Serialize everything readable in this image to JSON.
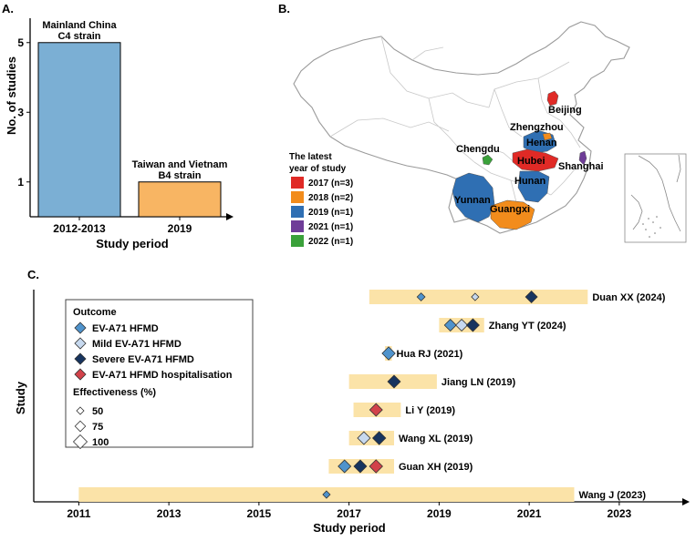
{
  "panel_labels": {
    "a": "A.",
    "b": "B.",
    "c": "C."
  },
  "colors": {
    "bar_c4": "#7bafd4",
    "bar_b4": "#f8b563",
    "year_2017": "#e02a26",
    "year_2018": "#f28c1c",
    "year_2019": "#2f6fb3",
    "year_2021": "#6f3d98",
    "year_2022": "#3aa13a",
    "span_fill": "#fbe3a8",
    "map_fill": "#ffffff",
    "map_stroke": "#bdbdbd",
    "ev_hfmd": "#4f93cc",
    "mild": "#c7d9ef",
    "severe": "#17345f",
    "hosp": "#d2424a"
  },
  "chart_data": [
    {
      "type": "bar",
      "panel": "A",
      "title": "",
      "xlabel": "Study period",
      "ylabel": "No. of studies",
      "categories": [
        "2012-2013",
        "2019"
      ],
      "values": [
        5,
        1
      ],
      "bar_labels": [
        [
          "Mainland China",
          "C4 strain"
        ],
        [
          "Taiwan and Vietnam",
          "B4 strain"
        ]
      ],
      "yticks": [
        "1",
        "3",
        "5"
      ],
      "ylim": [
        0,
        5.7
      ]
    },
    {
      "type": "map",
      "panel": "B",
      "legend_title": [
        "The latest",
        "year of study"
      ],
      "legend": [
        {
          "label": "2017 (n=3)",
          "color_key": "year_2017"
        },
        {
          "label": "2018 (n=2)",
          "color_key": "year_2018"
        },
        {
          "label": "2019 (n=1)",
          "color_key": "year_2019"
        },
        {
          "label": "2021 (n=1)",
          "color_key": "year_2021"
        },
        {
          "label": "2022 (n=1)",
          "color_key": "year_2022"
        }
      ],
      "regions": [
        {
          "name": "Beijing",
          "year": 2017
        },
        {
          "name": "Zhengzhou",
          "year": 2018
        },
        {
          "name": "Henan",
          "year": 2019
        },
        {
          "name": "Chengdu",
          "year": 2022
        },
        {
          "name": "Hubei",
          "year": 2017
        },
        {
          "name": "Shanghai",
          "year": 2021
        },
        {
          "name": "Hunan",
          "year": 2019
        },
        {
          "name": "Yunnan",
          "year": 2019
        },
        {
          "name": "Guangxi",
          "year": 2018
        }
      ]
    },
    {
      "type": "timeline",
      "panel": "C",
      "xlabel": "Study period",
      "ylabel": "Study",
      "xticks": [
        "2011",
        "2013",
        "2015",
        "2017",
        "2019",
        "2021",
        "2023"
      ],
      "xlim": [
        2010.0,
        2024.4
      ],
      "studies": [
        {
          "label": "Duan XX (2024)",
          "start": 2017.45,
          "end": 2022.3,
          "points": [
            {
              "x": 2018.6,
              "type": "ev",
              "eff": 55
            },
            {
              "x": 2019.8,
              "type": "mild",
              "eff": 50
            },
            {
              "x": 2021.05,
              "type": "severe",
              "eff": 85
            }
          ]
        },
        {
          "label": "Zhang YT (2024)",
          "start": 2019.0,
          "end": 2020.0,
          "points": [
            {
              "x": 2019.25,
              "type": "ev",
              "eff": 85
            },
            {
              "x": 2019.5,
              "type": "mild",
              "eff": 85
            },
            {
              "x": 2019.75,
              "type": "severe",
              "eff": 92
            }
          ]
        },
        {
          "label": "Hua RJ (2021)",
          "start": 2017.8,
          "end": 2017.95,
          "points": [
            {
              "x": 2017.88,
              "type": "ev",
              "eff": 95
            }
          ]
        },
        {
          "label": "Jiang LN (2019)",
          "start": 2017.0,
          "end": 2018.95,
          "points": [
            {
              "x": 2018.0,
              "type": "severe",
              "eff": 92
            }
          ]
        },
        {
          "label": "Li Y (2019)",
          "start": 2017.1,
          "end": 2018.15,
          "points": [
            {
              "x": 2017.6,
              "type": "hosp",
              "eff": 92
            }
          ]
        },
        {
          "label": "Wang XL (2019)",
          "start": 2017.0,
          "end": 2018.0,
          "points": [
            {
              "x": 2017.33,
              "type": "mild",
              "eff": 92
            },
            {
              "x": 2017.67,
              "type": "severe",
              "eff": 95
            }
          ]
        },
        {
          "label": "Guan XH (2019)",
          "start": 2016.55,
          "end": 2018.0,
          "points": [
            {
              "x": 2016.9,
              "type": "ev",
              "eff": 92
            },
            {
              "x": 2017.25,
              "type": "severe",
              "eff": 92
            },
            {
              "x": 2017.6,
              "type": "hosp",
              "eff": 95
            }
          ]
        },
        {
          "label": "Wang J (2023)",
          "start": 2011.0,
          "end": 2022.0,
          "points": [
            {
              "x": 2016.5,
              "type": "ev",
              "eff": 50
            }
          ]
        }
      ],
      "legend": {
        "outcome_title": "Outcome",
        "outcomes": [
          {
            "type": "ev",
            "label": "EV-A71 HFMD"
          },
          {
            "type": "mild",
            "label": "Mild EV-A71 HFMD"
          },
          {
            "type": "severe",
            "label": "Severe EV-A71 HFMD"
          },
          {
            "type": "hosp",
            "label": "EV-A71 HFMD hospitalisation"
          }
        ],
        "effectiveness_title": "Effectiveness (%)",
        "sizes": [
          {
            "label": "50",
            "eff": 50
          },
          {
            "label": "75",
            "eff": 75
          },
          {
            "label": "100",
            "eff": 100
          }
        ]
      }
    }
  ]
}
